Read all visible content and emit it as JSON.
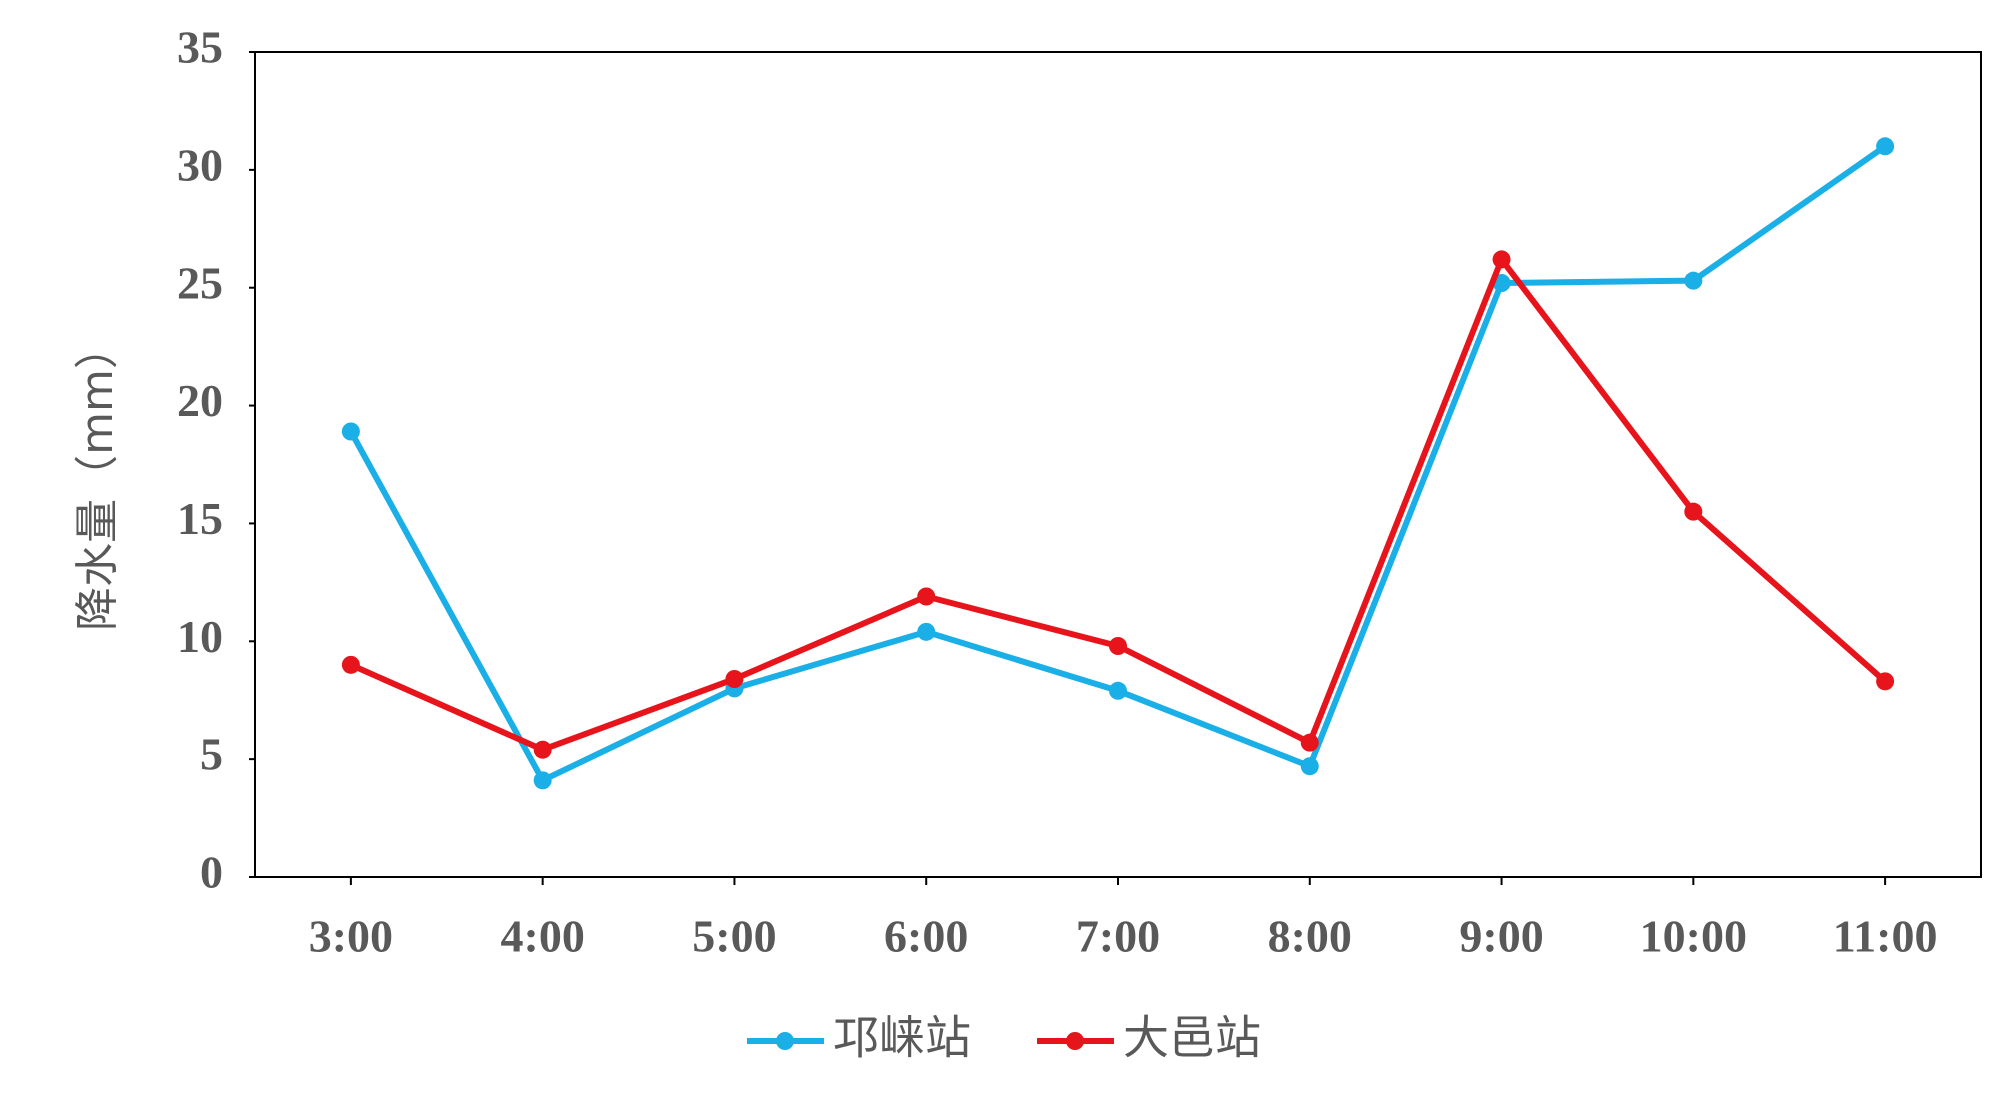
{
  "chart_data": {
    "type": "line",
    "y_label": "降水量（mm）",
    "categories": [
      "3:00",
      "4:00",
      "5:00",
      "6:00",
      "7:00",
      "8:00",
      "9:00",
      "10:00",
      "11:00"
    ],
    "series": [
      {
        "name": "邛崃站",
        "color": "#1aafe6",
        "values": [
          18.9,
          4.1,
          8.0,
          10.4,
          7.9,
          4.7,
          25.2,
          25.3,
          31.0
        ]
      },
      {
        "name": "大邑站",
        "color": "#e8141b",
        "values": [
          9.0,
          5.4,
          8.4,
          11.9,
          9.8,
          5.7,
          26.2,
          15.5,
          8.3
        ]
      }
    ],
    "ylim": [
      0,
      35
    ],
    "yticks": [
      0,
      5,
      10,
      15,
      20,
      25,
      30,
      35
    ],
    "grid": false,
    "legend": "bottom"
  }
}
